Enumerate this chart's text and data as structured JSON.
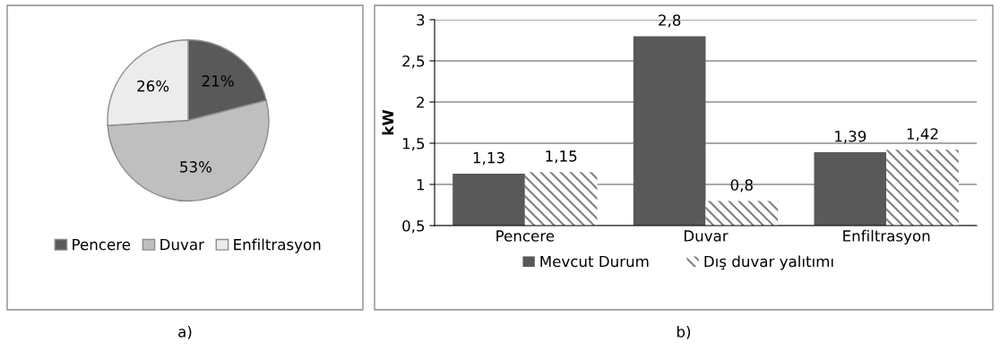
{
  "chart_data": [
    {
      "type": "pie",
      "categories": [
        "Pencere",
        "Duvar",
        "Enfiltrasyon"
      ],
      "values": [
        21,
        53,
        26
      ],
      "colors": [
        "#595959",
        "#bfbfbf",
        "#ececec"
      ],
      "value_labels": [
        "21%",
        "53%",
        "26%"
      ],
      "legend": "bottom",
      "annotations": [
        "a)"
      ]
    },
    {
      "type": "bar",
      "categories": [
        "Pencere",
        "Duvar",
        "Enfiltrasyon"
      ],
      "ylabel": "kW",
      "ylim": [
        0.5,
        3
      ],
      "yticks": [
        {
          "value": 0.5,
          "label": "0,5"
        },
        {
          "value": 1,
          "label": "1"
        },
        {
          "value": 1.5,
          "label": "1,5"
        },
        {
          "value": 2,
          "label": "2"
        },
        {
          "value": 2.5,
          "label": "2,5"
        },
        {
          "value": 3,
          "label": "3"
        }
      ],
      "grid": "y",
      "legend": "bottom",
      "annotations": [
        "b)"
      ],
      "series": [
        {
          "name": "Mevcut Durum",
          "color": "#595959",
          "values": [
            1.13,
            2.8,
            1.39
          ],
          "value_labels": [
            "1,13",
            "2,8",
            "1,39"
          ]
        },
        {
          "name": "Dış duvar yalıtımı",
          "color": "#7f7f7f",
          "values": [
            1.15,
            0.8,
            1.42
          ],
          "value_labels": [
            "1,15",
            "0,8",
            "1,42"
          ]
        }
      ]
    }
  ]
}
